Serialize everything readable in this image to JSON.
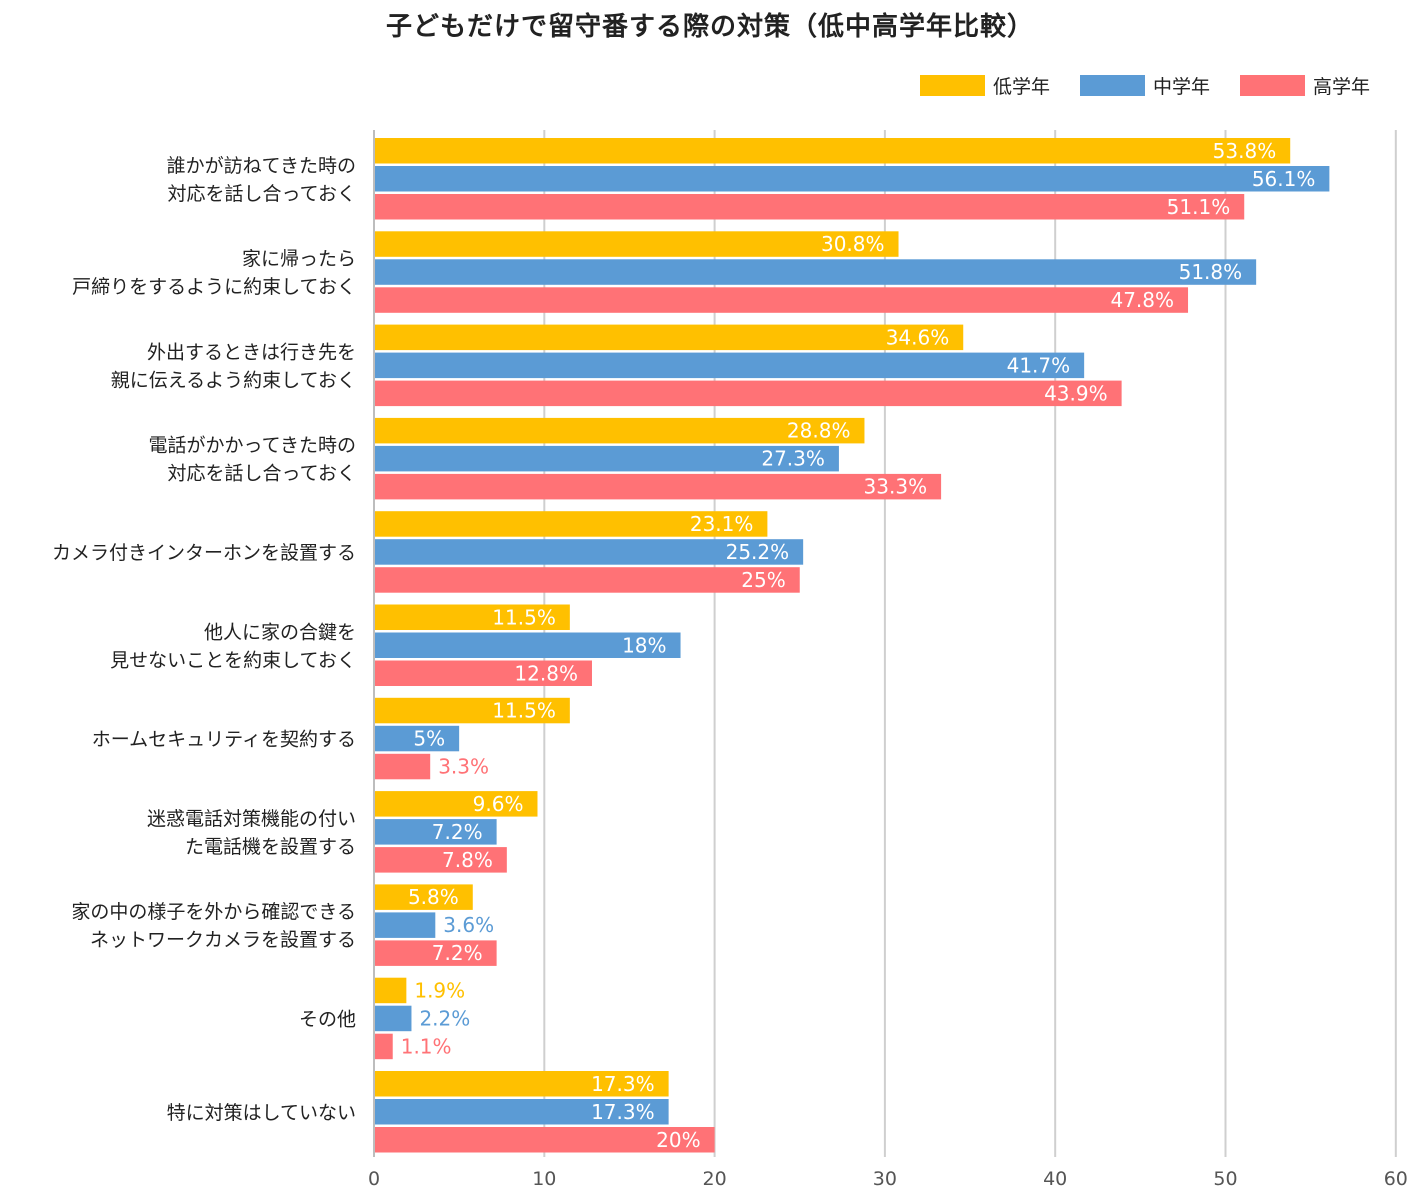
{
  "chart_data": {
    "type": "bar",
    "orientation": "horizontal",
    "title": "子どもだけで留守番する際の対策（低中高学年比較）",
    "xlabel": "",
    "ylabel": "",
    "xlim": [
      0,
      60
    ],
    "xticks": [
      0,
      10,
      20,
      30,
      40,
      50,
      60
    ],
    "grid": true,
    "legend_position": "top-right",
    "categories": [
      [
        "誰かが訪ねてきた時の",
        "対応を話し合っておく"
      ],
      [
        "家に帰ったら",
        "戸締りをするように約束しておく"
      ],
      [
        "外出するときは行き先を",
        "親に伝えるよう約束しておく"
      ],
      [
        "電話がかかってきた時の",
        "対応を話し合っておく"
      ],
      [
        "カメラ付きインターホンを設置する"
      ],
      [
        "他人に家の合鍵を",
        "見せないことを約束しておく"
      ],
      [
        "ホームセキュリティを契約する"
      ],
      [
        "迷惑電話対策機能の付い",
        "た電話機を設置する"
      ],
      [
        "家の中の様子を外から確認できる",
        "ネットワークカメラを設置する"
      ],
      [
        "その他"
      ],
      [
        "特に対策はしていない"
      ]
    ],
    "series": [
      {
        "name": "低学年",
        "color": "#FFC000",
        "values": [
          53.8,
          30.8,
          34.6,
          28.8,
          23.1,
          11.5,
          11.5,
          9.6,
          5.8,
          1.9,
          17.3
        ],
        "labels": [
          "53.8%",
          "30.8%",
          "34.6%",
          "28.8%",
          "23.1%",
          "11.5%",
          "11.5%",
          "9.6%",
          "5.8%",
          "1.9%",
          "17.3%"
        ]
      },
      {
        "name": "中学年",
        "color": "#5B9BD5",
        "values": [
          56.1,
          51.8,
          41.7,
          27.3,
          25.2,
          18,
          5,
          7.2,
          3.6,
          2.2,
          17.3
        ],
        "labels": [
          "56.1%",
          "51.8%",
          "41.7%",
          "27.3%",
          "25.2%",
          "18%",
          "5%",
          "7.2%",
          "3.6%",
          "2.2%",
          "17.3%"
        ]
      },
      {
        "name": "高学年",
        "color": "#FF7276",
        "values": [
          51.1,
          47.8,
          43.9,
          33.3,
          25,
          12.8,
          3.3,
          7.8,
          7.2,
          1.1,
          20
        ],
        "labels": [
          "51.1%",
          "47.8%",
          "43.9%",
          "33.3%",
          "25%",
          "12.8%",
          "3.3%",
          "7.8%",
          "7.2%",
          "1.1%",
          "20%"
        ]
      }
    ]
  }
}
